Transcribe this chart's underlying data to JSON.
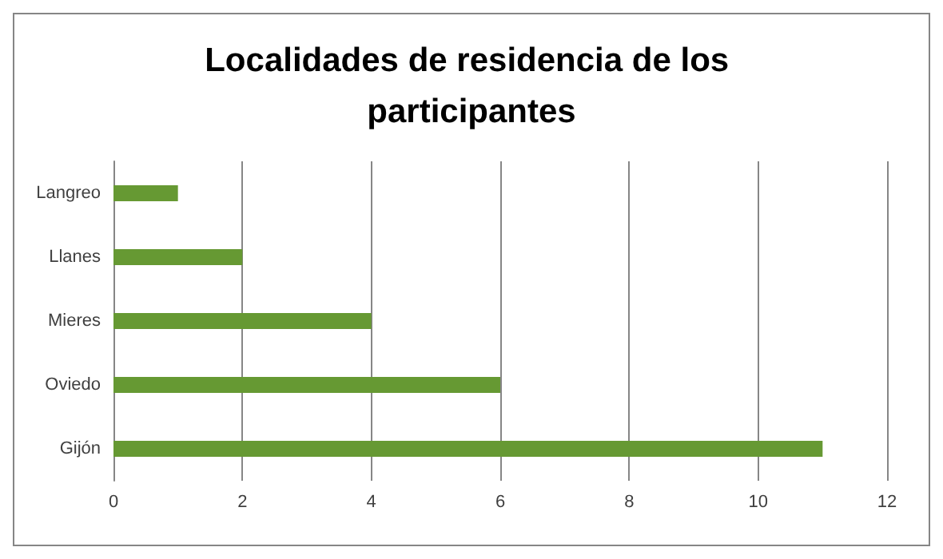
{
  "chart_data": {
    "type": "bar",
    "orientation": "horizontal",
    "title": "Localidades de residencia de los participantes",
    "categories": [
      "Langreo",
      "Llanes",
      "Mieres",
      "Oviedo",
      "Gijón"
    ],
    "values": [
      1,
      2,
      4,
      6,
      11
    ],
    "color": "#669933",
    "xlim": [
      0,
      12
    ],
    "xticks": [
      0,
      2,
      4,
      6,
      8,
      10,
      12
    ],
    "grid": "x"
  }
}
